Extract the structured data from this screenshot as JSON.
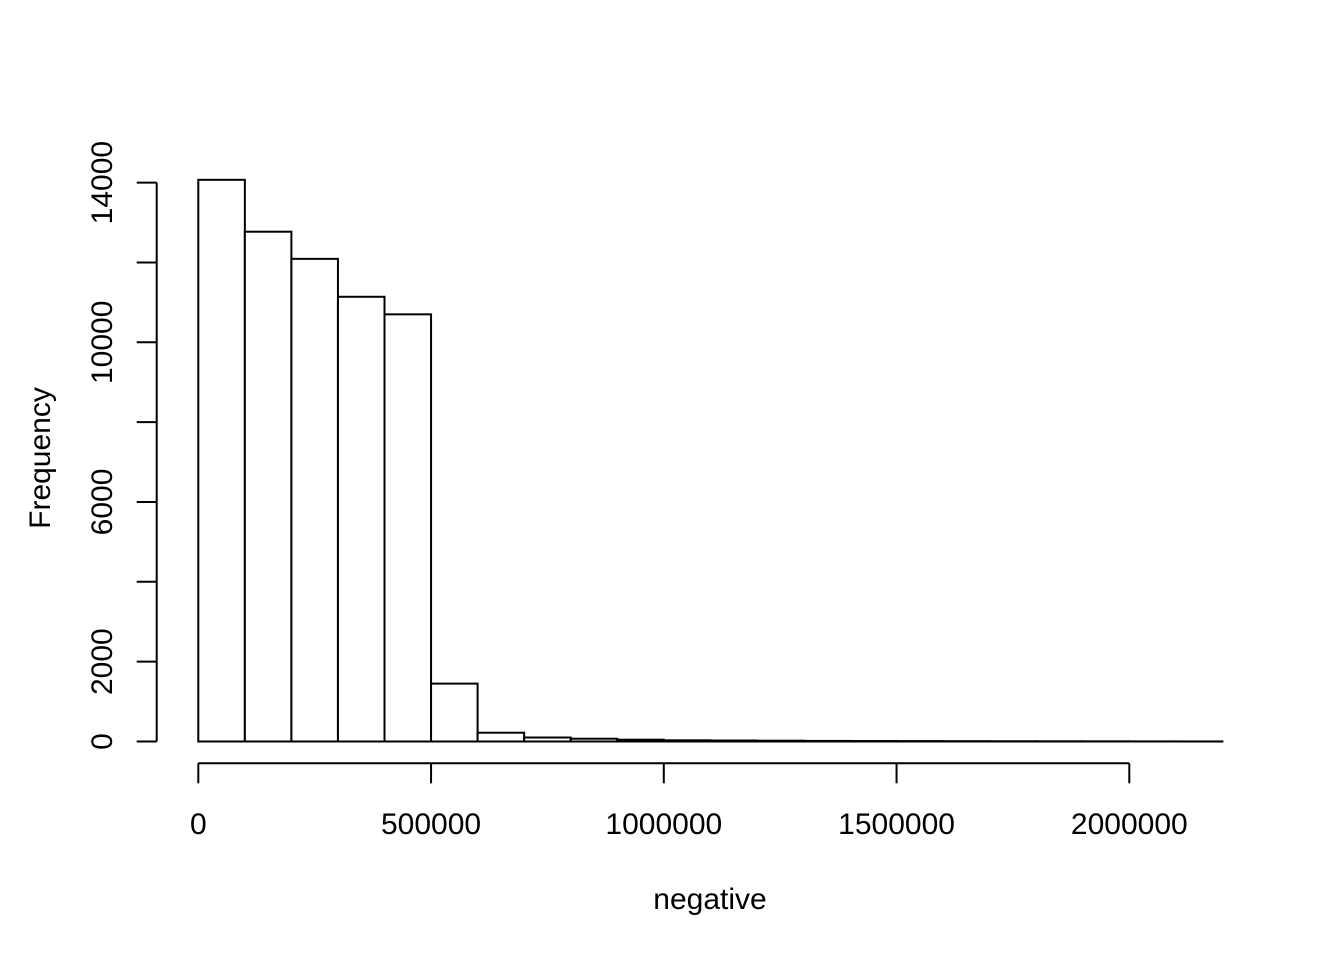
{
  "chart_data": {
    "type": "bar",
    "subtype": "histogram",
    "title": "",
    "xlabel": "negative",
    "ylabel": "Frequency",
    "bin_start": 0,
    "bin_width": 100000,
    "counts": [
      14070,
      12770,
      12090,
      11140,
      10700,
      1450,
      220,
      100,
      70,
      45,
      30,
      25,
      20,
      15,
      12,
      10,
      8,
      6,
      5,
      4,
      3,
      2
    ],
    "x_range": [
      0,
      2200000
    ],
    "y_range": [
      0,
      14000
    ],
    "x_axis_span": [
      0,
      2000000
    ],
    "x_ticks": [
      {
        "value": 0,
        "label": "0"
      },
      {
        "value": 500000,
        "label": "500000"
      },
      {
        "value": 1000000,
        "label": "1000000"
      },
      {
        "value": 1500000,
        "label": "1500000"
      },
      {
        "value": 2000000,
        "label": "2000000"
      }
    ],
    "y_ticks": [
      {
        "value": 0,
        "label": "0"
      },
      {
        "value": 2000,
        "label": "2000"
      },
      {
        "value": 4000,
        "label": ""
      },
      {
        "value": 6000,
        "label": "6000"
      },
      {
        "value": 8000,
        "label": ""
      },
      {
        "value": 10000,
        "label": "10000"
      },
      {
        "value": 12000,
        "label": ""
      },
      {
        "value": 14000,
        "label": "14000"
      }
    ],
    "grid": false,
    "legend": null,
    "colors": {
      "background": "#ffffff",
      "bar_fill": "#ffffff",
      "bar_stroke": "#000000",
      "axis": "#000000",
      "text": "#000000"
    }
  }
}
